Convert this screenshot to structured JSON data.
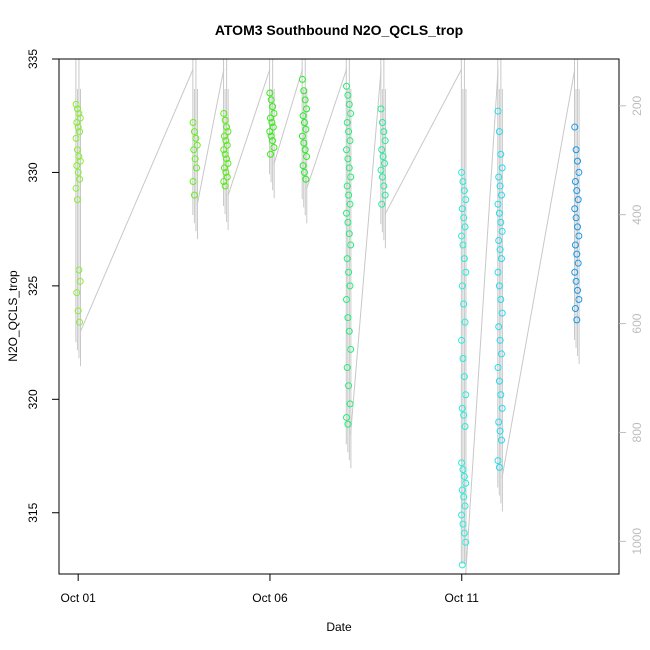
{
  "chart_data": {
    "type": "scatter",
    "title": "ATOM3 Southbound N2O_QCLS_trop",
    "xlabel": "Date",
    "ylabel": "N2O_QCLS_trop",
    "x_ticks": [
      {
        "label": "Oct 01",
        "day": 1
      },
      {
        "label": "Oct 06",
        "day": 6
      },
      {
        "label": "Oct 11",
        "day": 11
      }
    ],
    "xlim": [
      0.5,
      15.1
    ],
    "ylim": [
      312.3,
      335
    ],
    "y_ticks": [
      315,
      320,
      325,
      330,
      335
    ],
    "y2_ticks": [
      200,
      400,
      600,
      800,
      1000
    ],
    "y2_lim": [
      1060,
      114
    ],
    "y2_color": "#bdbdbd",
    "points_style": "open circles, color by date (green to blue)",
    "clusters": [
      {
        "day": 1.0,
        "color": "#88ee33",
        "values": [
          333.0,
          332.8,
          332.6,
          332.4,
          332.2,
          332.0,
          331.8,
          331.5,
          331.0,
          330.7,
          330.5,
          330.3,
          330.0,
          329.7,
          329.3,
          328.8,
          325.7,
          325.2,
          324.7,
          323.9,
          323.4
        ]
      },
      {
        "day": 4.05,
        "color": "#66ee22",
        "values": [
          332.2,
          331.8,
          331.5,
          331.2,
          331.0,
          330.6,
          330.2,
          329.6,
          329.0
        ]
      },
      {
        "day": 4.85,
        "color": "#55ee11",
        "values": [
          332.6,
          332.3,
          332.0,
          331.8,
          331.6,
          331.4,
          331.2,
          331.0,
          330.8,
          330.6,
          330.4,
          330.2,
          330.0,
          329.8,
          329.6,
          329.4
        ]
      },
      {
        "day": 6.05,
        "color": "#33ee11",
        "values": [
          333.5,
          333.2,
          332.9,
          332.6,
          332.4,
          332.2,
          332.0,
          331.8,
          331.6,
          331.4,
          331.1,
          330.8
        ]
      },
      {
        "day": 6.9,
        "color": "#22ee22",
        "values": [
          334.1,
          333.6,
          333.2,
          332.8,
          332.5,
          332.2,
          331.9,
          331.6,
          331.3,
          331.0,
          330.7,
          330.3,
          330.0,
          329.7
        ]
      },
      {
        "day": 8.05,
        "color": "#22ee77",
        "values": [
          333.8,
          333.4,
          333.0,
          332.6,
          332.2,
          331.8,
          331.4,
          331.0,
          330.6,
          330.2,
          329.8,
          329.4,
          329.0,
          328.6,
          328.2,
          327.8,
          327.3,
          326.8,
          326.2,
          325.6,
          325.0,
          324.4,
          323.6,
          323.0,
          322.2,
          321.4,
          320.6,
          319.8,
          319.2,
          318.9
        ]
      },
      {
        "day": 8.95,
        "color": "#22ee99",
        "values": [
          332.8,
          332.2,
          331.8,
          331.4,
          331.0,
          330.7,
          330.4,
          330.1,
          329.8,
          329.4,
          329.0,
          328.6
        ]
      },
      {
        "day": 11.05,
        "color": "#22eedd",
        "values": [
          330.0,
          329.6,
          329.2,
          328.8,
          328.4,
          328.0,
          327.6,
          327.2,
          326.8,
          326.2,
          325.6,
          325.0,
          324.2,
          323.4,
          322.6,
          321.8,
          321.0,
          320.2,
          319.6,
          319.3,
          318.8,
          317.2,
          316.9,
          316.6,
          316.3,
          316.0,
          315.7,
          315.3,
          314.9,
          314.5,
          314.1,
          313.7,
          312.7
        ]
      },
      {
        "day": 12.0,
        "color": "#22ddee",
        "values": [
          332.7,
          331.8,
          330.8,
          330.2,
          329.8,
          329.4,
          329.0,
          328.6,
          328.2,
          327.8,
          327.4,
          327.0,
          326.6,
          326.2,
          325.6,
          325.0,
          324.4,
          323.8,
          323.2,
          322.6,
          322.0,
          321.4,
          320.8,
          320.2,
          319.6,
          319.0,
          318.6,
          318.2,
          317.3,
          317.0
        ]
      },
      {
        "day": 14.0,
        "color": "#1199ee",
        "values": [
          332.0,
          331.0,
          330.5,
          330.0,
          329.6,
          329.2,
          328.8,
          328.4,
          328.0,
          327.6,
          327.2,
          326.8,
          326.4,
          326.0,
          325.6,
          325.2,
          324.8,
          324.4,
          324.0,
          323.5
        ]
      }
    ]
  }
}
